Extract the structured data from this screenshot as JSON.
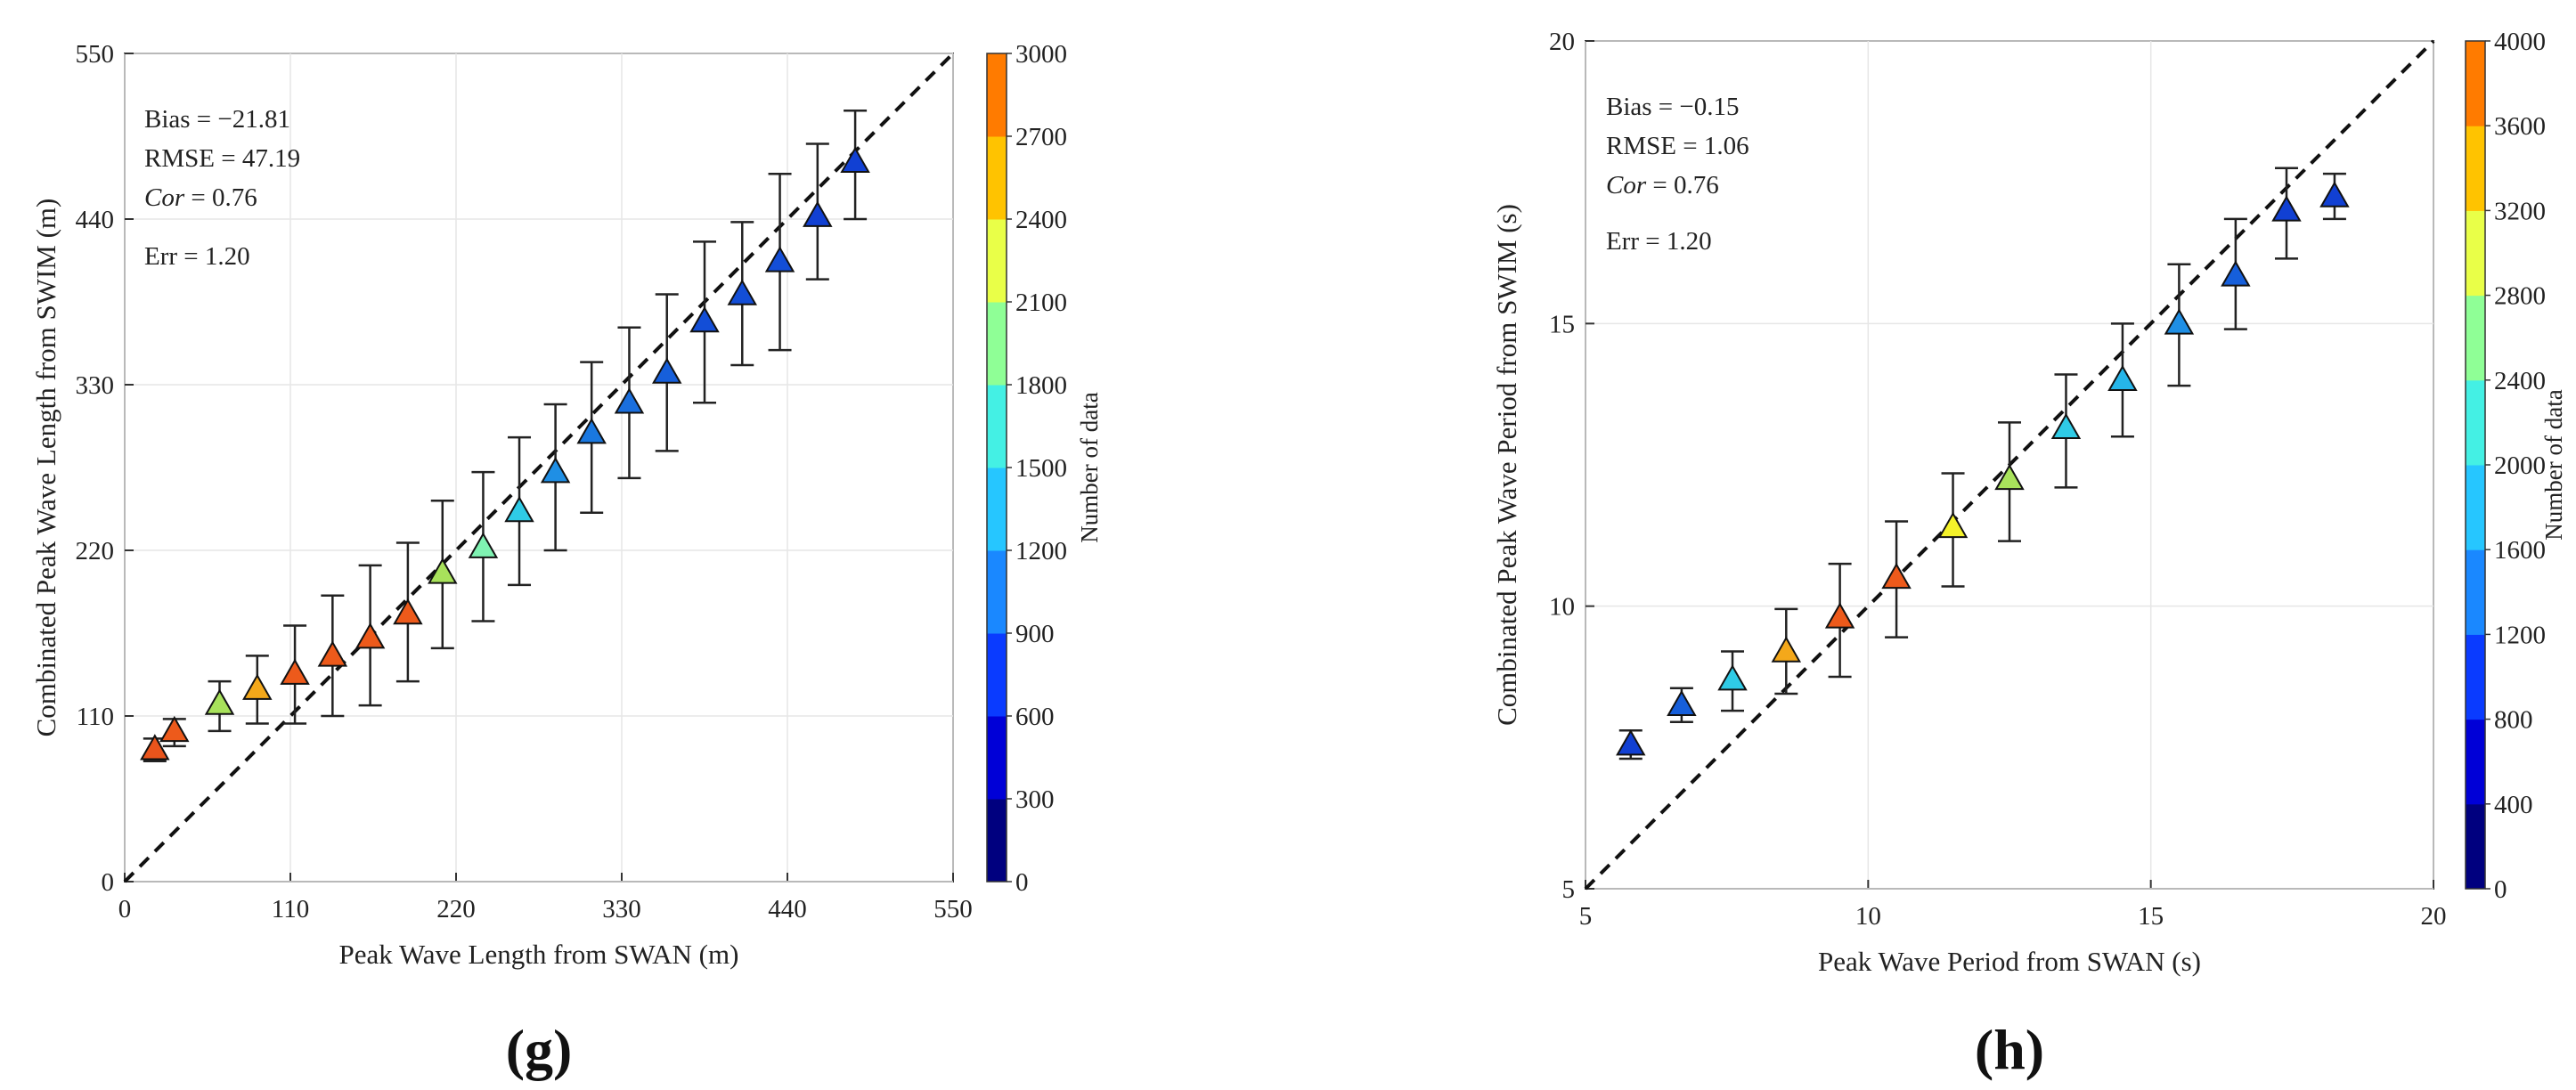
{
  "chart_data": [
    {
      "type": "scatter",
      "panel_label": "(g)",
      "xlabel": "Peak Wave Length from SWAN (m)",
      "ylabel": "Combinated Peak Wave Length from SWIM (m)",
      "xlim": [
        0,
        550
      ],
      "ylim": [
        0,
        550
      ],
      "xticks": [
        0,
        110,
        220,
        330,
        440,
        550
      ],
      "yticks": [
        0,
        110,
        220,
        330,
        440,
        550
      ],
      "grid": true,
      "reference_line": "1:1 dashed",
      "stats": [
        "Bias = −21.81",
        "RMSE = 47.19",
        "Err = 1.20"
      ],
      "stat_cor_name": "Cor",
      "stat_cor_value": " = 0.76",
      "colorbar": {
        "title": "Number of data",
        "min": 0,
        "max": 3000,
        "ticks": [
          0,
          300,
          600,
          900,
          1200,
          1500,
          1800,
          2100,
          2400,
          2700,
          3000
        ],
        "colors": [
          "#00007f",
          "#0000d7",
          "#0a3bff",
          "#1a88ff",
          "#26c6ff",
          "#44f0e4",
          "#8fff96",
          "#e9ff48",
          "#ffc300",
          "#ff7b00"
        ]
      },
      "series": [
        {
          "x": 20,
          "y": 88,
          "lo": 80,
          "hi": 95,
          "color": "#e9541c"
        },
        {
          "x": 33,
          "y": 100,
          "lo": 90,
          "hi": 108,
          "color": "#ed5a1b"
        },
        {
          "x": 63,
          "y": 118,
          "lo": 100,
          "hi": 133,
          "color": "#a8e25b"
        },
        {
          "x": 88,
          "y": 128,
          "lo": 105,
          "hi": 150,
          "color": "#f4a81a"
        },
        {
          "x": 113,
          "y": 138,
          "lo": 105,
          "hi": 170,
          "color": "#ed5a1b"
        },
        {
          "x": 138,
          "y": 150,
          "lo": 110,
          "hi": 190,
          "color": "#ed5a1b"
        },
        {
          "x": 163,
          "y": 162,
          "lo": 117,
          "hi": 210,
          "color": "#ed5a1b"
        },
        {
          "x": 188,
          "y": 178,
          "lo": 133,
          "hi": 225,
          "color": "#ed5a1b"
        },
        {
          "x": 211,
          "y": 205,
          "lo": 155,
          "hi": 253,
          "color": "#a8e25b"
        },
        {
          "x": 238,
          "y": 222,
          "lo": 173,
          "hi": 272,
          "color": "#7ff2b2"
        },
        {
          "x": 262,
          "y": 246,
          "lo": 197,
          "hi": 295,
          "color": "#2fcbe6"
        },
        {
          "x": 286,
          "y": 272,
          "lo": 220,
          "hi": 317,
          "color": "#1f8fe5"
        },
        {
          "x": 310,
          "y": 298,
          "lo": 245,
          "hi": 345,
          "color": "#1a78e0"
        },
        {
          "x": 335,
          "y": 318,
          "lo": 268,
          "hi": 368,
          "color": "#1a6fde"
        },
        {
          "x": 360,
          "y": 338,
          "lo": 286,
          "hi": 390,
          "color": "#165fdb"
        },
        {
          "x": 385,
          "y": 372,
          "lo": 318,
          "hi": 425,
          "color": "#134ed7"
        },
        {
          "x": 410,
          "y": 390,
          "lo": 343,
          "hi": 438,
          "color": "#134ed7"
        },
        {
          "x": 435,
          "y": 412,
          "lo": 353,
          "hi": 470,
          "color": "#134ed7"
        },
        {
          "x": 460,
          "y": 442,
          "lo": 400,
          "hi": 490,
          "color": "#1140d3"
        },
        {
          "x": 485,
          "y": 478,
          "lo": 440,
          "hi": 512,
          "color": "#1140d3"
        }
      ]
    },
    {
      "type": "scatter",
      "panel_label": "(h)",
      "xlabel": "Peak Wave Period from SWAN (s)",
      "ylabel": "Combinated Peak Wave Period from SWIM (s)",
      "xlim": [
        5,
        20
      ],
      "ylim": [
        5,
        20
      ],
      "xticks": [
        5,
        10,
        15,
        20
      ],
      "yticks": [
        5,
        10,
        15,
        20
      ],
      "grid": true,
      "reference_line": "1:1 dashed",
      "stats": [
        "Bias = −0.15",
        "RMSE = 1.06",
        "Err = 1.20"
      ],
      "stat_cor_name": "Cor",
      "stat_cor_value": " = 0.76",
      "colorbar": {
        "title": "Number of data",
        "min": 0,
        "max": 4000,
        "ticks": [
          0,
          400,
          800,
          1200,
          1600,
          2000,
          2400,
          2800,
          3200,
          3600,
          4000
        ],
        "colors": [
          "#00007f",
          "#0000d7",
          "#0a3bff",
          "#1a88ff",
          "#26c6ff",
          "#44f0e4",
          "#8fff96",
          "#e9ff48",
          "#ffc300",
          "#ff7b00"
        ]
      },
      "series": [
        {
          "x": 5.8,
          "y": 7.55,
          "lo": 7.3,
          "hi": 7.8,
          "color": "#1140d3"
        },
        {
          "x": 6.7,
          "y": 8.25,
          "lo": 7.95,
          "hi": 8.55,
          "color": "#165fdb"
        },
        {
          "x": 7.6,
          "y": 8.7,
          "lo": 8.15,
          "hi": 9.2,
          "color": "#2fcbe6"
        },
        {
          "x": 8.55,
          "y": 9.2,
          "lo": 8.45,
          "hi": 9.95,
          "color": "#f4a81a"
        },
        {
          "x": 9.5,
          "y": 9.8,
          "lo": 8.75,
          "hi": 10.75,
          "color": "#ed5a1b"
        },
        {
          "x": 10.5,
          "y": 10.5,
          "lo": 9.45,
          "hi": 11.5,
          "color": "#ed5a1b"
        },
        {
          "x": 11.5,
          "y": 11.4,
          "lo": 10.35,
          "hi": 12.35,
          "color": "#f4f22a"
        },
        {
          "x": 12.5,
          "y": 12.25,
          "lo": 11.15,
          "hi": 13.25,
          "color": "#a8e25b"
        },
        {
          "x": 13.5,
          "y": 13.15,
          "lo": 12.1,
          "hi": 14.1,
          "color": "#2fcbe6"
        },
        {
          "x": 14.5,
          "y": 14.0,
          "lo": 13.0,
          "hi": 15.0,
          "color": "#26b6ea"
        },
        {
          "x": 15.5,
          "y": 15.0,
          "lo": 13.9,
          "hi": 16.05,
          "color": "#1f8fe5"
        },
        {
          "x": 16.5,
          "y": 15.85,
          "lo": 14.9,
          "hi": 16.85,
          "color": "#165fdb"
        },
        {
          "x": 17.4,
          "y": 17.0,
          "lo": 16.15,
          "hi": 17.75,
          "color": "#1140d3"
        },
        {
          "x": 18.25,
          "y": 17.25,
          "lo": 16.85,
          "hi": 17.65,
          "color": "#1140d3"
        }
      ]
    }
  ]
}
